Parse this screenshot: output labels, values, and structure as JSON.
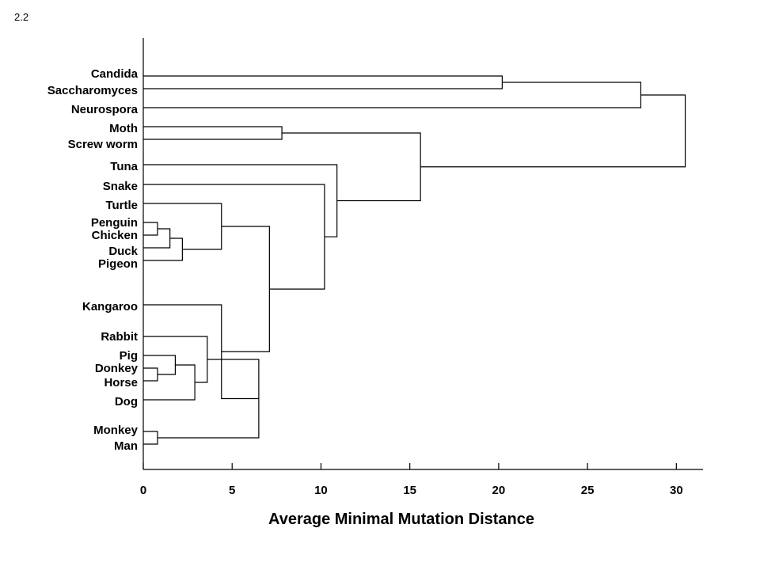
{
  "slide_number": "2.2",
  "chart_data": {
    "type": "dendrogram",
    "xlabel": "Average Minimal Mutation Distance",
    "xlim": [
      0,
      31.5
    ],
    "xticks": [
      0,
      5,
      10,
      15,
      20,
      25,
      30
    ],
    "leaves": [
      "Candida",
      "Saccharomyces",
      "Neurospora",
      "Moth",
      "Screw worm",
      "Tuna",
      "Snake",
      "Turtle",
      "Penguin",
      "Chicken",
      "Duck",
      "Pigeon",
      "Kangaroo",
      "Rabbit",
      "Pig",
      "Donkey",
      "Horse",
      "Dog",
      "Monkey",
      "Man"
    ],
    "merges": [
      {
        "id": "candida-saccharomyces",
        "left": "Candida",
        "right": "Saccharomyces",
        "distance": 20.2
      },
      {
        "id": "fungi",
        "left": "candida-saccharomyces",
        "right": "Neurospora",
        "distance": 28.0
      },
      {
        "id": "insects",
        "left": "Moth",
        "right": "Screw worm",
        "distance": 7.8
      },
      {
        "id": "penguin-chicken",
        "left": "Penguin",
        "right": "Chicken",
        "distance": 0.8
      },
      {
        "id": "penguin-chicken-duck",
        "left": "penguin-chicken",
        "right": "Duck",
        "distance": 1.5
      },
      {
        "id": "birds",
        "left": "penguin-chicken-duck",
        "right": "Pigeon",
        "distance": 2.2
      },
      {
        "id": "turtle-birds",
        "left": "Turtle",
        "right": "birds",
        "distance": 4.4
      },
      {
        "id": "donkey-horse",
        "left": "Donkey",
        "right": "Horse",
        "distance": 0.8
      },
      {
        "id": "pig-equids",
        "left": "Pig",
        "right": "donkey-horse",
        "distance": 1.8
      },
      {
        "id": "ungulates-dog",
        "left": "pig-equids",
        "right": "Dog",
        "distance": 2.9
      },
      {
        "id": "rabbit-group",
        "left": "Rabbit",
        "right": "ungulates-dog",
        "distance": 3.6
      },
      {
        "id": "monkey-man",
        "left": "Monkey",
        "right": "Man",
        "distance": 0.8
      },
      {
        "id": "placentals",
        "left": "rabbit-group",
        "right": "monkey-man",
        "distance": 6.5
      },
      {
        "id": "mammals",
        "left": "Kangaroo",
        "right": "placentals",
        "distance": 4.4
      },
      {
        "id": "amniote-core",
        "left": "turtle-birds",
        "right": "mammals",
        "distance": 7.1
      },
      {
        "id": "amniotes",
        "left": "Snake",
        "right": "amniote-core",
        "distance": 10.2
      },
      {
        "id": "vertebrates",
        "left": "Tuna",
        "right": "amniotes",
        "distance": 10.9
      },
      {
        "id": "animals",
        "left": "insects",
        "right": "vertebrates",
        "distance": 15.6
      },
      {
        "id": "root",
        "left": "fungi",
        "right": "animals",
        "distance": 30.5
      }
    ]
  }
}
